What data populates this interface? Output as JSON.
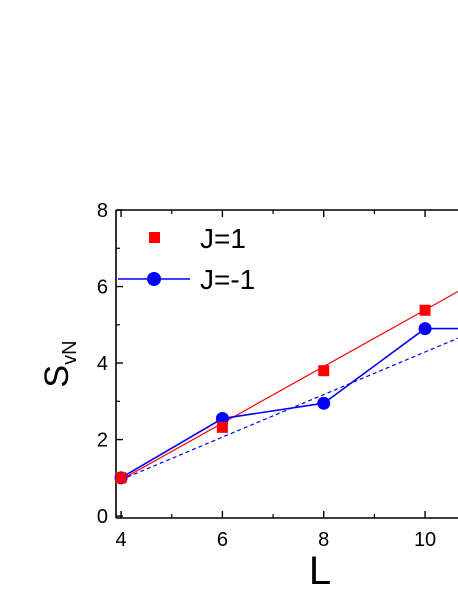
{
  "chart_data": {
    "type": "line",
    "x_axis": {
      "label": "L",
      "ticks": [
        4,
        6,
        8,
        10
      ],
      "range": [
        3.9,
        10.65
      ]
    },
    "y_axis": {
      "label_main": "S",
      "label_sub": "vN",
      "ticks": [
        0,
        2,
        4,
        6,
        8
      ],
      "range": [
        -0.05,
        8.0
      ]
    },
    "legend": {
      "placement": "top-left",
      "entries": [
        "J=1",
        "J=-1"
      ]
    },
    "series": [
      {
        "name": "J=1",
        "marker": "square",
        "color": "#ff0000",
        "x": [
          4,
          6,
          8,
          10
        ],
        "y": [
          1.0,
          2.32,
          3.8,
          5.38
        ]
      },
      {
        "name": "J=-1",
        "marker": "circle",
        "color": "#0000ff",
        "x": [
          4,
          6,
          8,
          10,
          10.65
        ],
        "y": [
          1.0,
          2.55,
          2.95,
          4.9,
          4.9
        ]
      }
    ],
    "fit_lines": [
      {
        "series": "J=1",
        "style": "solid",
        "color": "#ff0000",
        "x": [
          4,
          10.65
        ],
        "y": [
          0.95,
          5.87
        ]
      },
      {
        "series": "J=-1",
        "style": "dashed",
        "color": "#0000ff",
        "x": [
          4,
          10.65
        ],
        "y": [
          0.95,
          4.65
        ]
      }
    ],
    "grid": false
  }
}
